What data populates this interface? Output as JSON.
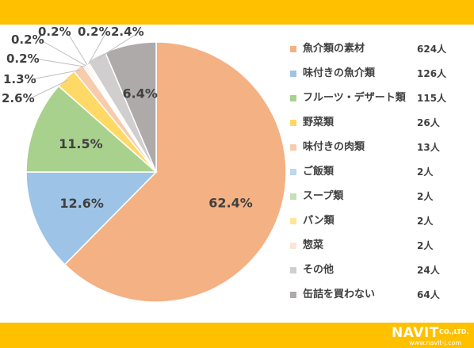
{
  "colors": {
    "band": "#ffc000"
  },
  "chart_data": {
    "type": "pie",
    "start_angle_deg": 90,
    "direction": "clockwise",
    "legend_position": "right",
    "categories": [
      "魚介類の素材",
      "味付きの魚介類",
      "フルーツ・デザート類",
      "野菜類",
      "味付きの肉類",
      "ご飯類",
      "スープ類",
      "パン類",
      "惣菜",
      "その他",
      "缶詰を買わない"
    ],
    "counts": [
      "624人",
      "126人",
      "115人",
      "26人",
      "13人",
      "2人",
      "2人",
      "2人",
      "2人",
      "24人",
      "64人"
    ],
    "values": [
      62.4,
      12.6,
      11.5,
      2.6,
      1.3,
      0.2,
      0.2,
      0.2,
      0.2,
      2.4,
      6.4
    ],
    "labels": [
      "62.4%",
      "12.6%",
      "11.5%",
      "2.6%",
      "1.3%",
      "0.2%",
      "0.2%",
      "0.2%",
      "0.2%",
      "2.4%",
      "6.4%"
    ],
    "colors": [
      "#f4b183",
      "#9dc3e6",
      "#a9d18e",
      "#ffd966",
      "#f8cbad",
      "#bdd7ee",
      "#c5e0b4",
      "#ffe699",
      "#fbe5d6",
      "#d0cece",
      "#aeaaaa"
    ]
  },
  "logo": {
    "name": "NAVIT",
    "company": "CO.,LTD.",
    "url": "www.navit-j.com"
  }
}
